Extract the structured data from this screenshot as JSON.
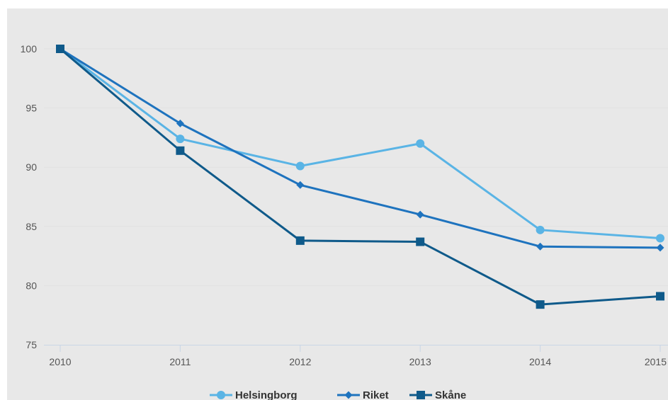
{
  "chart_data": {
    "type": "line",
    "title": "",
    "xlabel": "",
    "ylabel": "",
    "x": [
      "2010",
      "2011",
      "2012",
      "2013",
      "2014",
      "2015"
    ],
    "ylim": [
      75,
      102
    ],
    "yticks": [
      75,
      80,
      85,
      90,
      95,
      100
    ],
    "grid": true,
    "legend_position": "bottom",
    "series": [
      {
        "name": "Helsingborg",
        "color": "#5ab4e5",
        "marker": "circle",
        "values": [
          100,
          92.4,
          90.1,
          92.0,
          84.7,
          84.0
        ]
      },
      {
        "name": "Riket",
        "color": "#1e73be",
        "marker": "diamond",
        "values": [
          100,
          93.7,
          88.5,
          86.0,
          83.3,
          83.2
        ]
      },
      {
        "name": "Skåne",
        "color": "#0f5a8a",
        "marker": "square",
        "values": [
          100,
          91.4,
          83.8,
          83.7,
          78.4,
          79.1
        ]
      }
    ]
  }
}
